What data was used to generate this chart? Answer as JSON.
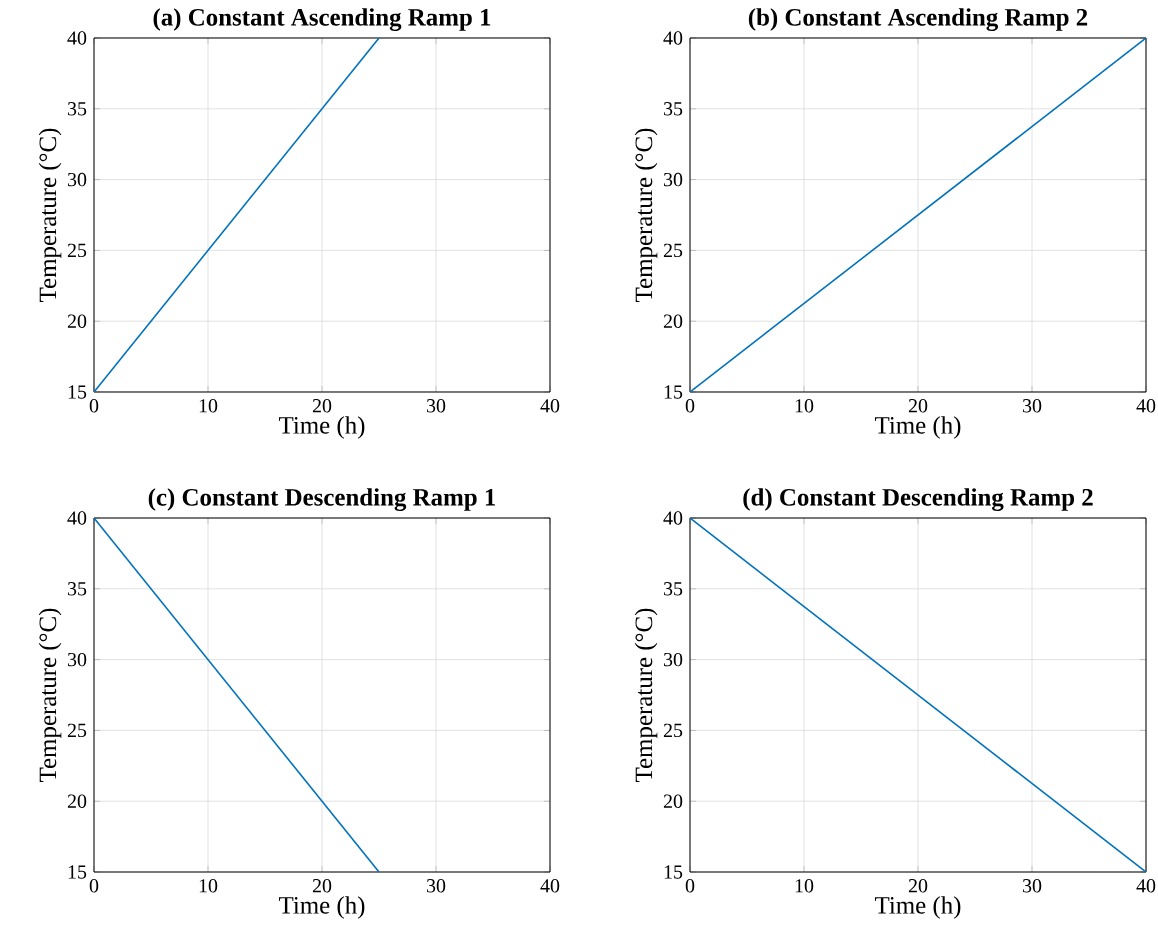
{
  "chart_data": [
    {
      "type": "line",
      "title": "(a) Constant Ascending Ramp 1",
      "xlabel": "Time (h)",
      "ylabel": "Temperature (°C)",
      "x": [
        0,
        25
      ],
      "series": [
        {
          "color": "#0072bd",
          "values": [
            15,
            40
          ]
        }
      ],
      "xlim": [
        0,
        40
      ],
      "ylim": [
        15,
        40
      ],
      "xticks": [
        0,
        10,
        20,
        30,
        40
      ],
      "yticks": [
        15,
        20,
        25,
        30,
        35,
        40
      ],
      "grid": true
    },
    {
      "type": "line",
      "title": "(b) Constant Ascending Ramp 2",
      "xlabel": "Time (h)",
      "ylabel": "Temperature (°C)",
      "x": [
        0,
        40
      ],
      "series": [
        {
          "color": "#0072bd",
          "values": [
            15,
            40
          ]
        }
      ],
      "xlim": [
        0,
        40
      ],
      "ylim": [
        15,
        40
      ],
      "xticks": [
        0,
        10,
        20,
        30,
        40
      ],
      "yticks": [
        15,
        20,
        25,
        30,
        35,
        40
      ],
      "grid": true
    },
    {
      "type": "line",
      "title": "(c) Constant Descending Ramp 1",
      "xlabel": "Time (h)",
      "ylabel": "Temperature (°C)",
      "x": [
        0,
        25
      ],
      "series": [
        {
          "color": "#0072bd",
          "values": [
            40,
            15
          ]
        }
      ],
      "xlim": [
        0,
        40
      ],
      "ylim": [
        15,
        40
      ],
      "xticks": [
        0,
        10,
        20,
        30,
        40
      ],
      "yticks": [
        15,
        20,
        25,
        30,
        35,
        40
      ],
      "grid": true
    },
    {
      "type": "line",
      "title": "(d) Constant Descending Ramp 2",
      "xlabel": "Time (h)",
      "ylabel": "Temperature (°C)",
      "x": [
        0,
        40
      ],
      "series": [
        {
          "color": "#0072bd",
          "values": [
            40,
            15
          ]
        }
      ],
      "xlim": [
        0,
        40
      ],
      "ylim": [
        15,
        40
      ],
      "xticks": [
        0,
        10,
        20,
        30,
        40
      ],
      "yticks": [
        15,
        20,
        25,
        30,
        35,
        40
      ],
      "grid": true
    }
  ]
}
